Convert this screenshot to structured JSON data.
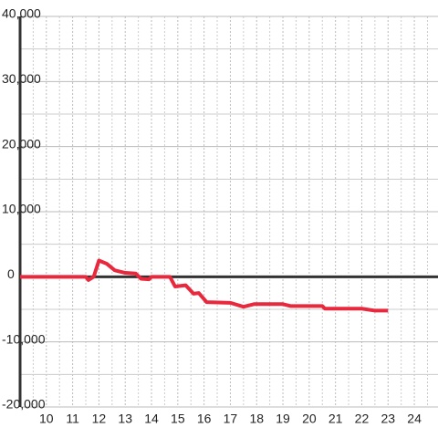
{
  "chart_data": {
    "type": "line",
    "x": [
      9,
      11.5,
      11.6,
      11.8,
      12,
      12.3,
      12.6,
      13,
      13.4,
      13.6,
      13.9,
      14,
      14.7,
      14.9,
      15.3,
      15.6,
      15.8,
      16.1,
      17,
      17.5,
      17.9,
      19,
      19.3,
      20.5,
      20.6,
      22,
      22.5,
      23
    ],
    "series": [
      {
        "color": "#e8283c",
        "values": [
          0,
          0,
          -500,
          0,
          2500,
          2000,
          1000,
          600,
          500,
          -300,
          -400,
          0,
          0,
          -1500,
          -1300,
          -2600,
          -2500,
          -3900,
          -4000,
          -4600,
          -4200,
          -4200,
          -4500,
          -4500,
          -4900,
          -4900,
          -5200,
          -5200
        ]
      }
    ],
    "xlim": [
      9,
      24.9
    ],
    "xticks": [
      10,
      11,
      12,
      13,
      14,
      15,
      16,
      17,
      18,
      19,
      20,
      21,
      22,
      23,
      24
    ],
    "xminorticks": [
      9.5,
      10.5,
      11.5,
      12.5,
      13.5,
      14.5,
      15.5,
      16.5,
      17.5,
      18.5,
      19.5,
      20.5,
      21.5,
      22.5,
      23.5,
      24.5
    ],
    "ylim": [
      -20000,
      40000
    ],
    "yticks": [
      {
        "value": -20000,
        "label": "-20,000"
      },
      {
        "value": -10000,
        "label": "-10,000"
      },
      0,
      {
        "value": 10000,
        "label": "10,000"
      },
      {
        "value": 20000,
        "label": "20,000"
      },
      {
        "value": 30000,
        "label": "30,000"
      },
      {
        "value": 40000,
        "label": "40,000"
      }
    ],
    "yminorticks": [
      -15000,
      -5000,
      5000,
      15000,
      25000,
      35000
    ],
    "grid": true
  }
}
